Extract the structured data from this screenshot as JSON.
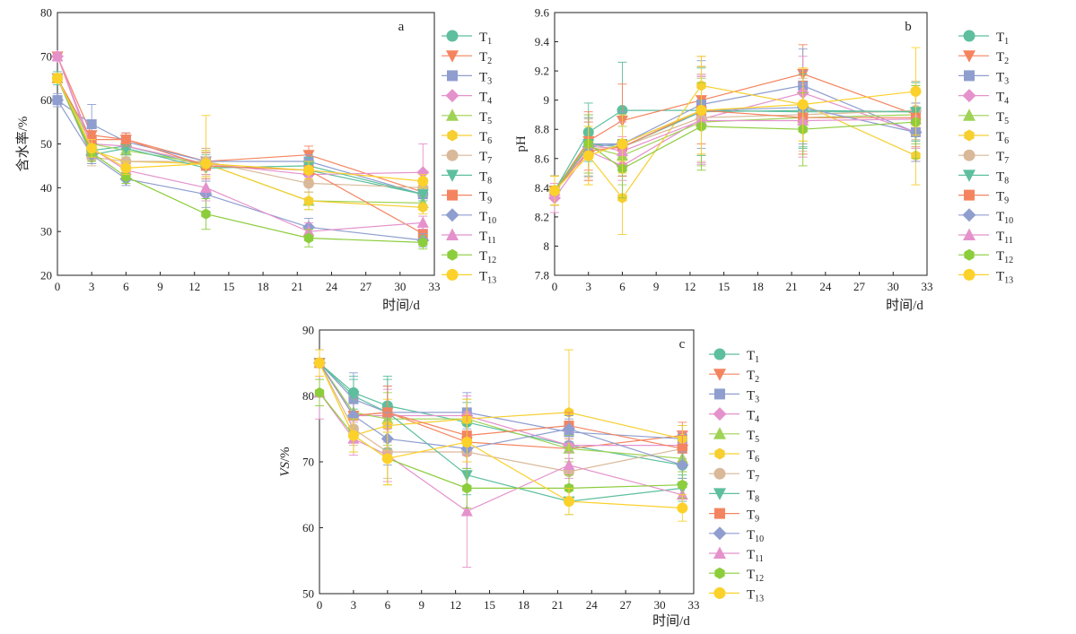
{
  "figure": {
    "legend_labels": [
      "T1",
      "T2",
      "T3",
      "T4",
      "T5",
      "T6",
      "T7",
      "T8",
      "T9",
      "T10",
      "T11",
      "T12",
      "T13"
    ],
    "legend_labels_rich": [
      {
        "base": "T",
        "sub": "1"
      },
      {
        "base": "T",
        "sub": "2"
      },
      {
        "base": "T",
        "sub": "3"
      },
      {
        "base": "T",
        "sub": "4"
      },
      {
        "base": "T",
        "sub": "5"
      },
      {
        "base": "T",
        "sub": "6"
      },
      {
        "base": "T",
        "sub": "7"
      },
      {
        "base": "T",
        "sub": "8"
      },
      {
        "base": "T",
        "sub": "9"
      },
      {
        "base": "T",
        "sub": "10"
      },
      {
        "base": "T",
        "sub": "11"
      },
      {
        "base": "T",
        "sub": "12"
      },
      {
        "base": "T",
        "sub": "13"
      }
    ],
    "series_style": [
      {
        "color": "#5dbf9e",
        "marker": "circle"
      },
      {
        "color": "#f4845f",
        "marker": "triangle-down"
      },
      {
        "color": "#8f9ecf",
        "marker": "square"
      },
      {
        "color": "#e592cc",
        "marker": "diamond"
      },
      {
        "color": "#9fd356",
        "marker": "triangle-up"
      },
      {
        "color": "#f6cf30",
        "marker": "hexagon"
      },
      {
        "color": "#d9b999",
        "marker": "circle"
      },
      {
        "color": "#5dbf9e",
        "marker": "triangle-down"
      },
      {
        "color": "#f4845f",
        "marker": "square"
      },
      {
        "color": "#8f9ecf",
        "marker": "diamond"
      },
      {
        "color": "#e592cc",
        "marker": "triangle-up"
      },
      {
        "color": "#8ccd3c",
        "marker": "hexagon"
      },
      {
        "color": "#fcd12a",
        "marker": "circle"
      }
    ]
  },
  "chart_data": [
    {
      "type": "line",
      "panel_letter": "a",
      "xlabel": "时间/d",
      "ylabel": "含水率/%",
      "xlim": [
        0,
        33
      ],
      "ylim": [
        20,
        80
      ],
      "xticks": [
        0,
        3,
        6,
        9,
        12,
        15,
        18,
        21,
        24,
        27,
        30,
        33
      ],
      "yticks": [
        20,
        30,
        40,
        50,
        60,
        70,
        80
      ],
      "x": [
        0,
        3,
        6,
        13,
        22,
        32
      ],
      "series": [
        {
          "name": "T1",
          "values": [
            65,
            48.5,
            49.5,
            45.0,
            44.0,
            38.5
          ],
          "err": [
            1.5,
            2,
            1.5,
            3,
            1.5,
            1.5
          ]
        },
        {
          "name": "T2",
          "values": [
            70,
            52.0,
            51.0,
            46.0,
            47.5,
            39.0
          ],
          "err": [
            1,
            2,
            1.5,
            3,
            2,
            1.5
          ]
        },
        {
          "name": "T3",
          "values": [
            60,
            54.5,
            50.5,
            46.0,
            46.0,
            38.5
          ],
          "err": [
            1.5,
            4.5,
            2,
            2,
            1.5,
            1.5
          ]
        },
        {
          "name": "T4",
          "values": [
            70,
            50.0,
            49.5,
            45.5,
            43.0,
            43.5
          ],
          "err": [
            1,
            2,
            1.5,
            3,
            2,
            6.5
          ]
        },
        {
          "name": "T5",
          "values": [
            65,
            50.0,
            48.5,
            45.5,
            37.0,
            36.5
          ],
          "err": [
            1,
            2,
            1.5,
            3,
            2,
            1.5
          ]
        },
        {
          "name": "T6",
          "values": [
            65,
            48.5,
            46.0,
            45.5,
            37.0,
            35.5
          ],
          "err": [
            1,
            2,
            1.5,
            11,
            2,
            1.5
          ]
        },
        {
          "name": "T7",
          "values": [
            65,
            47.0,
            46.0,
            46.0,
            41.0,
            40.0
          ],
          "err": [
            1,
            2,
            1.5,
            3,
            2,
            1.5
          ]
        },
        {
          "name": "T8",
          "values": [
            65,
            47.5,
            49.0,
            44.5,
            45.0,
            38.5
          ],
          "err": [
            1,
            2,
            1.5,
            3,
            2,
            1.5
          ]
        },
        {
          "name": "T9",
          "values": [
            65,
            51.0,
            51.0,
            45.0,
            44.0,
            29.5
          ],
          "err": [
            1,
            2,
            1.5,
            3,
            2,
            1.5
          ]
        },
        {
          "name": "T10",
          "values": [
            60,
            47.5,
            42.0,
            38.5,
            31.0,
            28.0
          ],
          "err": [
            1,
            2,
            1.5,
            3,
            2,
            1.5
          ]
        },
        {
          "name": "T11",
          "values": [
            70,
            49.0,
            44.0,
            40.0,
            30.0,
            32.0
          ],
          "err": [
            1,
            2,
            1.5,
            3,
            2,
            1.5
          ]
        },
        {
          "name": "T12",
          "values": [
            65,
            48.0,
            42.5,
            34.0,
            28.5,
            27.5
          ],
          "err": [
            1,
            2,
            1.5,
            3.5,
            2,
            1.5
          ]
        },
        {
          "name": "T13",
          "values": [
            65,
            49.0,
            44.5,
            45.5,
            44.0,
            41.5
          ],
          "err": [
            1,
            2,
            1.5,
            3,
            2,
            1.5
          ]
        }
      ]
    },
    {
      "type": "line",
      "panel_letter": "b",
      "xlabel": "时间/d",
      "ylabel": "pH",
      "xlim": [
        0,
        33
      ],
      "ylim": [
        7.8,
        9.6
      ],
      "xticks": [
        0,
        3,
        6,
        9,
        12,
        15,
        18,
        21,
        24,
        27,
        30,
        33
      ],
      "yticks": [
        7.8,
        8.0,
        8.2,
        8.4,
        8.6,
        8.8,
        9.0,
        9.2,
        9.4,
        9.6
      ],
      "x": [
        0,
        3,
        6,
        13,
        22,
        32
      ],
      "series": [
        {
          "name": "T1",
          "values": [
            8.38,
            8.78,
            8.93,
            8.93,
            8.92,
            8.92
          ],
          "err": [
            0.1,
            0.2,
            0.33,
            0.3,
            0.25,
            0.2
          ]
        },
        {
          "name": "T2",
          "values": [
            8.38,
            8.72,
            8.86,
            9.0,
            9.18,
            8.9
          ],
          "err": [
            0.1,
            0.2,
            0.25,
            0.3,
            0.2,
            0.2
          ]
        },
        {
          "name": "T3",
          "values": [
            8.38,
            8.7,
            8.7,
            8.97,
            9.1,
            8.78
          ],
          "err": [
            0.1,
            0.2,
            0.22,
            0.3,
            0.25,
            0.2
          ]
        },
        {
          "name": "T4",
          "values": [
            8.33,
            8.65,
            8.55,
            8.87,
            9.05,
            8.78
          ],
          "err": [
            0.1,
            0.2,
            0.2,
            0.3,
            0.25,
            0.2
          ]
        },
        {
          "name": "T5",
          "values": [
            8.38,
            8.68,
            8.62,
            8.85,
            8.88,
            8.9
          ],
          "err": [
            0.1,
            0.2,
            0.2,
            0.3,
            0.25,
            0.2
          ]
        },
        {
          "name": "T6",
          "values": [
            8.38,
            8.62,
            8.33,
            9.1,
            8.97,
            8.62
          ],
          "err": [
            0.1,
            0.2,
            0.25,
            0.2,
            0.25,
            0.2
          ]
        },
        {
          "name": "T7",
          "values": [
            8.38,
            8.67,
            8.68,
            8.88,
            8.9,
            8.93
          ],
          "err": [
            0.1,
            0.2,
            0.2,
            0.3,
            0.25,
            0.2
          ]
        },
        {
          "name": "T8",
          "values": [
            8.38,
            8.7,
            8.68,
            8.92,
            8.93,
            8.92
          ],
          "err": [
            0.1,
            0.2,
            0.2,
            0.3,
            0.25,
            0.2
          ]
        },
        {
          "name": "T9",
          "values": [
            8.38,
            8.65,
            8.68,
            8.93,
            8.88,
            8.88
          ],
          "err": [
            0.1,
            0.2,
            0.2,
            0.3,
            0.25,
            0.2
          ]
        },
        {
          "name": "T10",
          "values": [
            8.38,
            8.68,
            8.7,
            8.93,
            8.95,
            8.78
          ],
          "err": [
            0.1,
            0.2,
            0.2,
            0.3,
            0.25,
            0.2
          ]
        },
        {
          "name": "T11",
          "values": [
            8.38,
            8.7,
            8.65,
            8.86,
            8.86,
            8.87
          ],
          "err": [
            0.1,
            0.2,
            0.2,
            0.3,
            0.25,
            0.2
          ]
        },
        {
          "name": "T12",
          "values": [
            8.38,
            8.7,
            8.53,
            8.82,
            8.8,
            8.85
          ],
          "err": [
            0.1,
            0.2,
            0.2,
            0.3,
            0.25,
            0.25
          ]
        },
        {
          "name": "T13",
          "values": [
            8.38,
            8.62,
            8.7,
            8.93,
            8.97,
            9.06
          ],
          "err": [
            0.1,
            0.2,
            0.2,
            0.3,
            0.25,
            0.3
          ]
        }
      ]
    },
    {
      "type": "line",
      "panel_letter": "c",
      "xlabel": "时间/d",
      "ylabel": "VS/%",
      "xlim": [
        0,
        33
      ],
      "ylim": [
        50,
        90
      ],
      "xticks": [
        0,
        3,
        6,
        9,
        12,
        15,
        18,
        21,
        24,
        27,
        30,
        33
      ],
      "yticks": [
        50,
        60,
        70,
        80,
        90
      ],
      "x": [
        0,
        3,
        6,
        13,
        22,
        32
      ],
      "series": [
        {
          "name": "T1",
          "values": [
            85,
            80.5,
            78.5,
            76.0,
            72.5,
            69.5
          ],
          "err": [
            2,
            2.5,
            4,
            3,
            2,
            2
          ]
        },
        {
          "name": "T2",
          "values": [
            85,
            77.0,
            77.5,
            73.0,
            72.0,
            74.0
          ],
          "err": [
            2,
            2.5,
            4,
            3,
            2,
            2
          ]
        },
        {
          "name": "T3",
          "values": [
            85,
            79.5,
            77.5,
            77.5,
            74.5,
            73.5
          ],
          "err": [
            2,
            4,
            4,
            3,
            2,
            2
          ]
        },
        {
          "name": "T4",
          "values": [
            85,
            77.0,
            77.0,
            77.0,
            72.5,
            72.5
          ],
          "err": [
            2,
            2.5,
            4,
            3,
            2,
            2
          ]
        },
        {
          "name": "T5",
          "values": [
            85,
            77.5,
            76.5,
            76.5,
            72.0,
            70.5
          ],
          "err": [
            2,
            2.5,
            4,
            3,
            2,
            2
          ]
        },
        {
          "name": "T6",
          "values": [
            85,
            74.0,
            75.5,
            76.5,
            77.5,
            73.5
          ],
          "err": [
            2,
            2.5,
            4,
            3,
            9.5,
            2
          ]
        },
        {
          "name": "T7",
          "values": [
            85,
            75.0,
            71.5,
            71.5,
            68.5,
            72.0
          ],
          "err": [
            2,
            2.5,
            4,
            3,
            2,
            2
          ]
        },
        {
          "name": "T8",
          "values": [
            85,
            80.0,
            77.5,
            68.0,
            64.0,
            66.0
          ],
          "err": [
            2,
            2.5,
            5.5,
            3,
            2,
            2
          ]
        },
        {
          "name": "T9",
          "values": [
            85,
            77.0,
            77.5,
            74.0,
            75.5,
            72.0
          ],
          "err": [
            2,
            2.5,
            4,
            3,
            2,
            2
          ]
        },
        {
          "name": "T10",
          "values": [
            85,
            77.0,
            73.5,
            72.0,
            75.0,
            69.5
          ],
          "err": [
            2,
            2.5,
            4,
            3,
            2,
            2
          ]
        },
        {
          "name": "T11",
          "values": [
            80.5,
            73.5,
            71.0,
            62.5,
            69.5,
            65.0
          ],
          "err": [
            4,
            2.5,
            4,
            8.5,
            2,
            2
          ]
        },
        {
          "name": "T12",
          "values": [
            80.5,
            74.0,
            70.5,
            66.0,
            66.0,
            66.5
          ],
          "err": [
            2,
            2.5,
            4,
            3,
            2,
            2
          ]
        },
        {
          "name": "T13",
          "values": [
            85,
            74.0,
            70.5,
            73.0,
            64.0,
            63.0
          ],
          "err": [
            2,
            2.5,
            4,
            3,
            2,
            2
          ]
        }
      ]
    }
  ]
}
